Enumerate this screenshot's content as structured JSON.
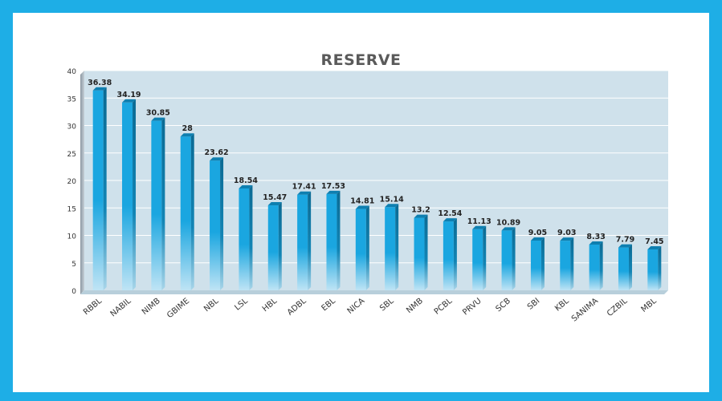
{
  "chart_data": {
    "type": "bar",
    "title": "RESERVE",
    "categories": [
      "RBBL",
      "NABIL",
      "NIMB",
      "GBIME",
      "NBL",
      "LSL",
      "HBL",
      "ADBL",
      "EBL",
      "NICA",
      "SBL",
      "NMB",
      "PCBL",
      "PRVU",
      "SCB",
      "SBI",
      "KBL",
      "SANIMA",
      "CZBIL",
      "MBL"
    ],
    "values": [
      36.38,
      34.19,
      30.85,
      28,
      23.62,
      18.54,
      15.47,
      17.41,
      17.53,
      14.81,
      15.14,
      13.2,
      12.54,
      11.13,
      10.89,
      9.05,
      9.03,
      8.33,
      7.79,
      7.45
    ],
    "data_labels": [
      "36.38",
      "34.19",
      "30.85",
      "28",
      "23.62",
      "18.54",
      "15.47",
      "17.41",
      "17.53",
      "14.81",
      "15.14",
      "13.2",
      "12.54",
      "11.13",
      "10.89",
      "9.05",
      "9.03",
      "8.33",
      "7.79",
      "7.45"
    ],
    "ylim": [
      0,
      40
    ],
    "yticks": [
      "0",
      "5",
      "10",
      "15",
      "20",
      "25",
      "30",
      "35",
      "40"
    ],
    "grid": true,
    "colors": {
      "bar": "#1aa6e0",
      "bar_side": "#0d6f99",
      "plot_bg": "#cfe1eb",
      "frame": "#1eaee6"
    }
  }
}
